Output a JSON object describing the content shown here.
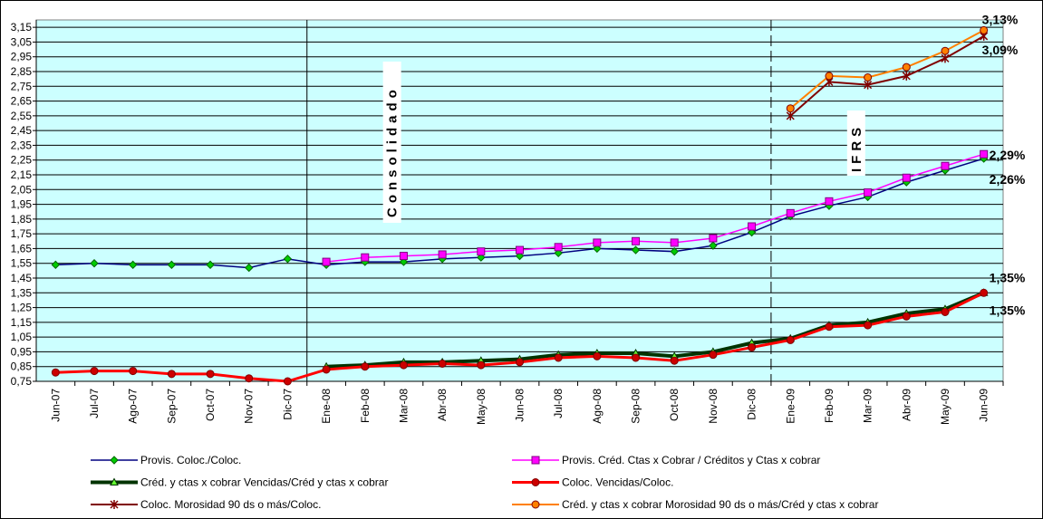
{
  "chart_data": {
    "type": "line",
    "categories": [
      "Jun-07",
      "Jul-07",
      "Ago-07",
      "Sep-07",
      "Oct-07",
      "Nov-07",
      "Dic-07",
      "Ene-08",
      "Feb-08",
      "Mar-08",
      "Abr-08",
      "May-08",
      "Jun-08",
      "Jul-08",
      "Ago-08",
      "Sep-08",
      "Oct-08",
      "Nov-08",
      "Dic-08",
      "Ene-09",
      "Feb-09",
      "Mar-09",
      "Abr-09",
      "May-09",
      "Jun-09"
    ],
    "ylim": [
      0.75,
      3.2
    ],
    "yticks": [
      {
        "value": 0.75,
        "label": "0,75"
      },
      {
        "value": 0.85,
        "label": "0,85"
      },
      {
        "value": 0.95,
        "label": "0,95"
      },
      {
        "value": 1.05,
        "label": "1,05"
      },
      {
        "value": 1.15,
        "label": "1,15"
      },
      {
        "value": 1.25,
        "label": "1,25"
      },
      {
        "value": 1.35,
        "label": "1,35"
      },
      {
        "value": 1.45,
        "label": "1,45"
      },
      {
        "value": 1.55,
        "label": "1,55"
      },
      {
        "value": 1.65,
        "label": "1,65"
      },
      {
        "value": 1.75,
        "label": "1,75"
      },
      {
        "value": 1.85,
        "label": "1,85"
      },
      {
        "value": 1.95,
        "label": "1,95"
      },
      {
        "value": 2.05,
        "label": "2,05"
      },
      {
        "value": 2.15,
        "label": "2,15"
      },
      {
        "value": 2.25,
        "label": "2,25"
      },
      {
        "value": 2.35,
        "label": "2,35"
      },
      {
        "value": 2.45,
        "label": "2,45"
      },
      {
        "value": 2.55,
        "label": "2,55"
      },
      {
        "value": 2.65,
        "label": "2,65"
      },
      {
        "value": 2.75,
        "label": "2,75"
      },
      {
        "value": 2.85,
        "label": "2,85"
      },
      {
        "value": 2.95,
        "label": "2,95"
      },
      {
        "value": 3.05,
        "label": "3,05"
      },
      {
        "value": 3.15,
        "label": "3,15"
      }
    ],
    "grid": true,
    "annotations": [
      "Consolidado",
      "IFRS"
    ],
    "series": [
      {
        "name": "Provis. Coloc./Coloc.",
        "color": "#000080",
        "marker": "diamond",
        "marker_color": "#00cc00",
        "values": [
          1.54,
          1.55,
          1.54,
          1.54,
          1.54,
          1.52,
          1.58,
          1.54,
          1.56,
          1.56,
          1.58,
          1.59,
          1.6,
          1.62,
          1.65,
          1.64,
          1.63,
          1.67,
          1.76,
          1.87,
          1.94,
          2.0,
          2.1,
          2.18,
          2.26
        ],
        "value_labels": [
          null,
          null,
          null,
          null,
          null,
          null,
          null,
          null,
          null,
          null,
          null,
          null,
          null,
          null,
          null,
          null,
          null,
          null,
          null,
          null,
          null,
          null,
          null,
          null,
          "2,26%"
        ]
      },
      {
        "name": "Provis. Créd. Ctas x Cobrar / Créditos y Ctas x cobrar",
        "color": "#ff00ff",
        "marker": "square",
        "marker_color": "#ff00ff",
        "values": [
          null,
          null,
          null,
          null,
          null,
          null,
          null,
          1.56,
          1.59,
          1.6,
          1.61,
          1.63,
          1.64,
          1.66,
          1.69,
          1.7,
          1.69,
          1.72,
          1.8,
          1.89,
          1.97,
          2.03,
          2.13,
          2.21,
          2.29
        ],
        "value_labels": [
          null,
          null,
          null,
          null,
          null,
          null,
          null,
          null,
          null,
          null,
          null,
          null,
          null,
          null,
          null,
          null,
          null,
          null,
          null,
          null,
          null,
          null,
          null,
          null,
          "2,29%"
        ]
      },
      {
        "name": "Créd. y ctas x cobrar Vencidas/Créd y ctas x cobrar",
        "color": "#003300",
        "marker": "triangle",
        "marker_color": "#66ff33",
        "values": [
          null,
          null,
          null,
          null,
          null,
          null,
          null,
          0.85,
          0.86,
          0.88,
          0.88,
          0.89,
          0.9,
          0.93,
          0.94,
          0.94,
          0.92,
          0.95,
          1.01,
          1.04,
          1.13,
          1.15,
          1.21,
          1.24,
          1.35
        ],
        "value_labels": [
          null,
          null,
          null,
          null,
          null,
          null,
          null,
          null,
          null,
          null,
          null,
          null,
          null,
          null,
          null,
          null,
          null,
          null,
          null,
          null,
          null,
          null,
          null,
          null,
          "1,35%"
        ]
      },
      {
        "name": "Coloc. Vencidas/Coloc.",
        "color": "#ff0000",
        "marker": "circle",
        "marker_color": "#cc0000",
        "values": [
          0.81,
          0.82,
          0.82,
          0.8,
          0.8,
          0.77,
          0.75,
          0.83,
          0.85,
          0.86,
          0.87,
          0.86,
          0.88,
          0.91,
          0.92,
          0.91,
          0.89,
          0.93,
          0.98,
          1.03,
          1.12,
          1.13,
          1.19,
          1.22,
          1.35
        ],
        "value_labels": [
          null,
          null,
          null,
          null,
          null,
          null,
          null,
          null,
          null,
          null,
          null,
          null,
          null,
          null,
          null,
          null,
          null,
          null,
          null,
          null,
          null,
          null,
          null,
          null,
          "1,35%"
        ]
      },
      {
        "name": "Coloc. Morosidad 90 ds o más/Coloc.",
        "color": "#800000",
        "marker": "star",
        "marker_color": "#800000",
        "values": [
          null,
          null,
          null,
          null,
          null,
          null,
          null,
          null,
          null,
          null,
          null,
          null,
          null,
          null,
          null,
          null,
          null,
          null,
          null,
          2.55,
          2.78,
          2.76,
          2.82,
          2.94,
          3.09
        ],
        "value_labels": [
          null,
          null,
          null,
          null,
          null,
          null,
          null,
          null,
          null,
          null,
          null,
          null,
          null,
          null,
          null,
          null,
          null,
          null,
          null,
          null,
          null,
          null,
          null,
          null,
          "3,09%"
        ]
      },
      {
        "name": "Créd. y ctas x cobrar Morosidad 90 ds o más/Créd y ctas x cobrar",
        "color": "#ff8000",
        "marker": "circle",
        "marker_color": "#ff8000",
        "values": [
          null,
          null,
          null,
          null,
          null,
          null,
          null,
          null,
          null,
          null,
          null,
          null,
          null,
          null,
          null,
          null,
          null,
          null,
          null,
          2.6,
          2.82,
          2.81,
          2.88,
          2.99,
          3.13
        ],
        "value_labels": [
          null,
          null,
          null,
          null,
          null,
          null,
          null,
          null,
          null,
          null,
          null,
          null,
          null,
          null,
          null,
          null,
          null,
          null,
          null,
          null,
          null,
          null,
          null,
          null,
          "3,13%"
        ]
      }
    ]
  }
}
